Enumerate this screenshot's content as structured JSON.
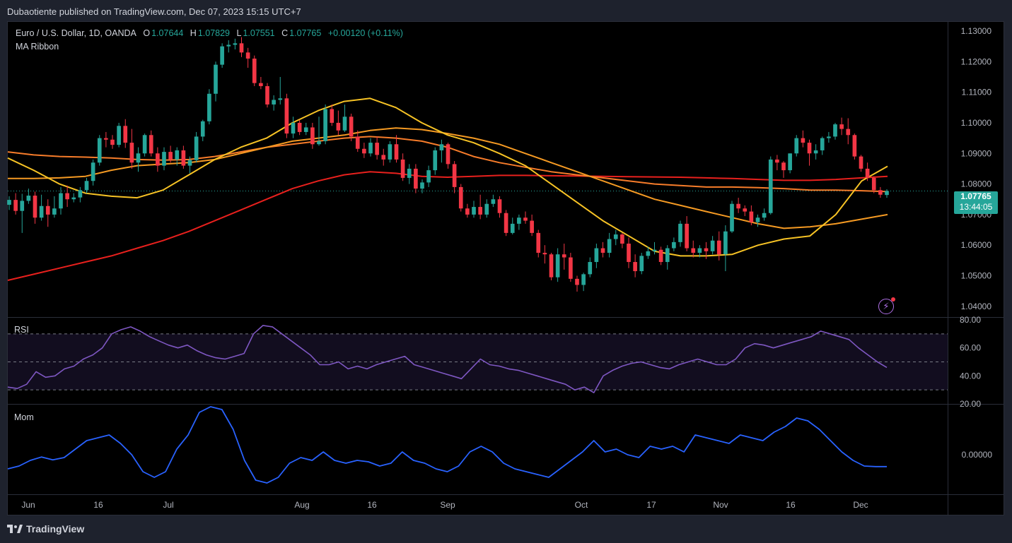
{
  "header": {
    "publisher_text": "Dubaotiente published on TradingView.com, Dec 07, 2023 15:15 UTC+7"
  },
  "legend": {
    "symbol": "Euro / U.S. Dollar, 1D, OANDA",
    "o_label": "O",
    "o_value": "1.07644",
    "h_label": "H",
    "h_value": "1.07829",
    "l_label": "L",
    "l_value": "1.07551",
    "c_label": "C",
    "c_value": "1.07765",
    "change": "+0.00120 (+0.11%)",
    "indicator": "MA Ribbon"
  },
  "price_tag": {
    "price": "1.07765",
    "countdown": "13:44:05"
  },
  "panes": {
    "rsi_label": "RSI",
    "mom_label": "Mom"
  },
  "footer": {
    "brand": "TradingView"
  },
  "colors": {
    "up": "#26a69a",
    "down": "#f23645",
    "ma_fast": "#f7c325",
    "ma_mid": "#f59a23",
    "ma_slow": "#f77c2a",
    "ma_200": "#e8201d",
    "rsi": "#7e57c2",
    "mom": "#2962ff"
  },
  "chart_data": {
    "type": "candlestick",
    "title": "Euro / U.S. Dollar, 1D, OANDA",
    "x_tick_labels": [
      "Jun",
      "16",
      "Jul",
      "Aug",
      "16",
      "Sep",
      "Oct",
      "17",
      "Nov",
      "16",
      "Dec"
    ],
    "price_axis": {
      "ticks": [
        "1.13000",
        "1.12000",
        "1.11000",
        "1.10000",
        "1.09000",
        "1.08000",
        "1.07000",
        "1.06000",
        "1.05000",
        "1.04000"
      ],
      "ylim": [
        1.0365,
        1.133
      ]
    },
    "rsi_axis": {
      "ticks": [
        "80.00",
        "60.00",
        "40.00",
        "20.00"
      ],
      "bands": [
        70,
        50,
        30
      ]
    },
    "mom_axis": {
      "ticks": [
        "0.00000"
      ]
    },
    "candles": [
      [
        1.0732,
        1.076,
        1.0715,
        1.0748
      ],
      [
        1.0748,
        1.077,
        1.07,
        1.0712
      ],
      [
        1.0712,
        1.0768,
        1.064,
        1.0745
      ],
      [
        1.0745,
        1.0785,
        1.0735,
        1.0762
      ],
      [
        1.0762,
        1.0775,
        1.067,
        1.069
      ],
      [
        1.069,
        1.0765,
        1.068,
        1.0728
      ],
      [
        1.0728,
        1.075,
        1.066,
        1.07
      ],
      [
        1.07,
        1.076,
        1.069,
        1.072
      ],
      [
        1.072,
        1.079,
        1.07,
        1.077
      ],
      [
        1.077,
        1.0795,
        1.0725,
        1.075
      ],
      [
        1.075,
        1.077,
        1.074,
        1.0756
      ],
      [
        1.0756,
        1.079,
        1.074,
        1.078
      ],
      [
        1.078,
        1.082,
        1.077,
        1.081
      ],
      [
        1.081,
        1.088,
        1.0795,
        1.087
      ],
      [
        1.087,
        1.096,
        1.086,
        1.095
      ],
      [
        1.095,
        1.097,
        1.092,
        1.0945
      ],
      [
        1.0945,
        1.096,
        1.0915,
        1.0928
      ],
      [
        1.0928,
        1.1,
        1.092,
        1.099
      ],
      [
        1.099,
        1.1012,
        1.0918,
        1.0935
      ],
      [
        1.0935,
        1.098,
        1.085,
        1.087
      ],
      [
        1.087,
        1.092,
        1.084,
        1.09
      ],
      [
        1.09,
        1.0965,
        1.089,
        1.096
      ],
      [
        1.096,
        1.0975,
        1.089,
        1.09
      ],
      [
        1.09,
        1.092,
        1.084,
        1.086
      ],
      [
        1.086,
        1.092,
        1.0845,
        1.0905
      ],
      [
        1.0905,
        1.0925,
        1.087,
        1.088
      ],
      [
        1.088,
        1.092,
        1.086,
        1.091
      ],
      [
        1.091,
        1.0925,
        1.085,
        1.086
      ],
      [
        1.086,
        1.089,
        1.0835,
        1.0878
      ],
      [
        1.0878,
        1.097,
        1.087,
        1.0955
      ],
      [
        1.0955,
        1.101,
        1.094,
        1.1005
      ],
      [
        1.1005,
        1.111,
        1.0995,
        1.1095
      ],
      [
        1.1095,
        1.12,
        1.107,
        1.119
      ],
      [
        1.119,
        1.126,
        1.118,
        1.125
      ],
      [
        1.125,
        1.127,
        1.123,
        1.1255
      ],
      [
        1.1255,
        1.1275,
        1.124,
        1.126
      ],
      [
        1.126,
        1.128,
        1.1215,
        1.123
      ],
      [
        1.123,
        1.1245,
        1.118,
        1.121
      ],
      [
        1.121,
        1.122,
        1.112,
        1.113
      ],
      [
        1.113,
        1.115,
        1.111,
        1.112
      ],
      [
        1.112,
        1.113,
        1.105,
        1.106
      ],
      [
        1.106,
        1.109,
        1.104,
        1.1075
      ],
      [
        1.1075,
        1.115,
        1.106,
        1.108
      ],
      [
        1.108,
        1.1095,
        1.095,
        1.0965
      ],
      [
        1.0965,
        1.102,
        1.095,
        1.1
      ],
      [
        1.1,
        1.101,
        1.096,
        1.097
      ],
      [
        1.097,
        1.1,
        1.096,
        1.0985
      ],
      [
        1.0985,
        1.1,
        1.0915,
        1.093
      ],
      [
        1.093,
        1.102,
        1.0925,
        1.094
      ],
      [
        1.094,
        1.106,
        1.093,
        1.1045
      ],
      [
        1.1045,
        1.106,
        1.099,
        1.1
      ],
      [
        1.1,
        1.104,
        1.096,
        1.0975
      ],
      [
        1.0975,
        1.106,
        1.097,
        1.102
      ],
      [
        1.102,
        1.103,
        1.094,
        1.0955
      ],
      [
        1.0955,
        1.0975,
        1.0905,
        1.0915
      ],
      [
        1.0915,
        1.0935,
        1.0885,
        1.09
      ],
      [
        1.09,
        1.095,
        1.089,
        1.0935
      ],
      [
        1.0935,
        1.0955,
        1.088,
        1.0895
      ],
      [
        1.0895,
        1.0915,
        1.086,
        1.088
      ],
      [
        1.088,
        1.094,
        1.087,
        1.093
      ],
      [
        1.093,
        1.096,
        1.087,
        1.088
      ],
      [
        1.088,
        1.09,
        1.081,
        1.082
      ],
      [
        1.082,
        1.0865,
        1.08,
        1.085
      ],
      [
        1.085,
        1.0865,
        1.077,
        1.0785
      ],
      [
        1.0785,
        1.0815,
        1.077,
        1.0805
      ],
      [
        1.0805,
        1.086,
        1.079,
        1.0845
      ],
      [
        1.0845,
        1.092,
        1.083,
        1.091
      ],
      [
        1.091,
        1.0945,
        1.087,
        1.093
      ],
      [
        1.093,
        1.0935,
        1.085,
        1.0865
      ],
      [
        1.0865,
        1.0875,
        1.077,
        1.079
      ],
      [
        1.079,
        1.08,
        1.071,
        1.072
      ],
      [
        1.072,
        1.0735,
        1.069,
        1.07
      ],
      [
        1.07,
        1.0745,
        1.069,
        1.0725
      ],
      [
        1.0725,
        1.0765,
        1.0685,
        1.07
      ],
      [
        1.07,
        1.075,
        1.069,
        1.0735
      ],
      [
        1.0735,
        1.0765,
        1.0725,
        1.075
      ],
      [
        1.075,
        1.076,
        1.069,
        1.0705
      ],
      [
        1.0705,
        1.0715,
        1.063,
        1.064
      ],
      [
        1.064,
        1.069,
        1.0635,
        1.067
      ],
      [
        1.067,
        1.07,
        1.065,
        1.069
      ],
      [
        1.069,
        1.071,
        1.067,
        1.068
      ],
      [
        1.068,
        1.07,
        1.063,
        1.064
      ],
      [
        1.064,
        1.065,
        1.056,
        1.0575
      ],
      [
        1.0575,
        1.06,
        1.054,
        1.057
      ],
      [
        1.057,
        1.0575,
        1.0485,
        1.0495
      ],
      [
        1.0495,
        1.059,
        1.048,
        1.057
      ],
      [
        1.057,
        1.0605,
        1.052,
        1.056
      ],
      [
        1.056,
        1.0575,
        1.048,
        1.049
      ],
      [
        1.049,
        1.05,
        1.0448,
        1.047
      ],
      [
        1.047,
        1.051,
        1.045,
        1.0505
      ],
      [
        1.0505,
        1.056,
        1.0495,
        1.0545
      ],
      [
        1.0545,
        1.0605,
        1.0525,
        1.059
      ],
      [
        1.059,
        1.061,
        1.056,
        1.0575
      ],
      [
        1.0575,
        1.064,
        1.056,
        1.062
      ],
      [
        1.062,
        1.065,
        1.06,
        1.0635
      ],
      [
        1.0635,
        1.064,
        1.059,
        1.0605
      ],
      [
        1.0605,
        1.0625,
        1.0525,
        1.0545
      ],
      [
        1.0545,
        1.057,
        1.0495,
        1.0515
      ],
      [
        1.0515,
        1.0575,
        1.0505,
        1.0565
      ],
      [
        1.0565,
        1.0595,
        1.0555,
        1.058
      ],
      [
        1.058,
        1.061,
        1.057,
        1.0585
      ],
      [
        1.0585,
        1.0595,
        1.0535,
        1.0545
      ],
      [
        1.0545,
        1.06,
        1.052,
        1.059
      ],
      [
        1.059,
        1.0625,
        1.058,
        1.061
      ],
      [
        1.061,
        1.068,
        1.0595,
        1.067
      ],
      [
        1.067,
        1.0695,
        1.058,
        1.059
      ],
      [
        1.059,
        1.0615,
        1.056,
        1.0575
      ],
      [
        1.0575,
        1.06,
        1.056,
        1.059
      ],
      [
        1.059,
        1.061,
        1.0555,
        1.058
      ],
      [
        1.058,
        1.063,
        1.057,
        1.0615
      ],
      [
        1.0615,
        1.0645,
        1.055,
        1.057
      ],
      [
        1.057,
        1.0665,
        1.0515,
        1.0645
      ],
      [
        1.0645,
        1.0745,
        1.064,
        1.0735
      ],
      [
        1.0735,
        1.0755,
        1.0705,
        1.072
      ],
      [
        1.072,
        1.073,
        1.0695,
        1.071
      ],
      [
        1.071,
        1.073,
        1.0665,
        1.0675
      ],
      [
        1.0675,
        1.07,
        1.066,
        1.069
      ],
      [
        1.069,
        1.072,
        1.068,
        1.0705
      ],
      [
        1.0705,
        1.089,
        1.07,
        1.088
      ],
      [
        1.088,
        1.0895,
        1.0845,
        1.087
      ],
      [
        1.087,
        1.0875,
        1.082,
        1.0845
      ],
      [
        1.0845,
        1.09,
        1.0835,
        1.09
      ],
      [
        1.09,
        1.096,
        1.089,
        1.095
      ],
      [
        1.095,
        1.0975,
        1.092,
        1.0935
      ],
      [
        1.0935,
        1.0945,
        1.086,
        1.09
      ],
      [
        1.09,
        1.093,
        1.088,
        1.091
      ],
      [
        1.091,
        1.0955,
        1.0895,
        1.095
      ],
      [
        1.095,
        1.097,
        1.0935,
        1.0955
      ],
      [
        1.0955,
        1.1,
        1.0945,
        1.0995
      ],
      [
        1.0995,
        1.1017,
        1.096,
        1.098
      ],
      [
        1.098,
        1.1015,
        1.093,
        1.096
      ],
      [
        1.096,
        1.0965,
        1.088,
        1.089
      ],
      [
        1.089,
        1.0895,
        1.084,
        1.085
      ],
      [
        1.085,
        1.087,
        1.081,
        1.082
      ],
      [
        1.082,
        1.0825,
        1.077,
        1.078
      ],
      [
        1.078,
        1.079,
        1.0755,
        1.0765
      ],
      [
        1.0764,
        1.0783,
        1.0755,
        1.0777
      ]
    ],
    "ma_fast": [
      1.0885,
      1.0845,
      1.08,
      1.077,
      1.076,
      1.0755,
      1.078,
      1.083,
      1.088,
      1.092,
      1.095,
      1.1,
      1.104,
      1.107,
      1.108,
      1.105,
      1.1,
      1.096,
      1.0935,
      1.09,
      1.086,
      1.08,
      1.074,
      1.068,
      1.063,
      1.058,
      1.0565,
      1.0565,
      1.057,
      1.06,
      1.062,
      1.063,
      1.07,
      1.081,
      1.0858
    ],
    "ma_mid": [
      1.0818,
      1.0818,
      1.082,
      1.0825,
      1.0845,
      1.086,
      1.0865,
      1.087,
      1.088,
      1.09,
      1.092,
      1.094,
      1.095,
      1.096,
      1.0975,
      1.0983,
      1.0978,
      1.0965,
      1.095,
      1.093,
      1.09,
      1.087,
      1.084,
      1.081,
      1.078,
      1.075,
      1.073,
      1.071,
      1.069,
      1.067,
      1.0655,
      1.066,
      1.067,
      1.0685,
      1.07
    ],
    "ma_slow": [
      1.0905,
      1.0895,
      1.089,
      1.0888,
      1.0885,
      1.088,
      1.0878,
      1.088,
      1.089,
      1.0905,
      1.092,
      1.093,
      1.094,
      1.095,
      1.0955,
      1.095,
      1.094,
      1.092,
      1.089,
      1.087,
      1.0855,
      1.084,
      1.083,
      1.082,
      1.081,
      1.08,
      1.0795,
      1.079,
      1.079,
      1.0788,
      1.0785,
      1.078,
      1.078,
      1.0778,
      1.0775
    ],
    "ma_200": [
      1.0485,
      1.0505,
      1.0525,
      1.0545,
      1.0565,
      1.059,
      1.0615,
      1.0645,
      1.068,
      1.0715,
      1.075,
      1.0785,
      1.081,
      1.083,
      1.084,
      1.0835,
      1.0825,
      1.0822,
      1.0825,
      1.0828,
      1.0828,
      1.0827,
      1.0826,
      1.0825,
      1.0824,
      1.0823,
      1.0822,
      1.082,
      1.0818,
      1.0815,
      1.0812,
      1.0812,
      1.0815,
      1.082,
      1.0825
    ],
    "rsi": [
      32,
      31,
      34,
      43,
      39,
      40,
      45,
      47,
      52,
      55,
      60,
      70,
      73,
      75,
      72,
      68,
      65,
      62,
      60,
      62,
      58,
      55,
      53,
      52,
      54,
      56,
      70,
      76,
      75,
      70,
      65,
      60,
      55,
      48,
      48,
      50,
      45,
      47,
      45,
      48,
      50,
      52,
      54,
      48,
      46,
      44,
      42,
      40,
      38,
      45,
      52,
      48,
      47,
      45,
      44,
      42,
      40,
      38,
      36,
      34,
      30,
      32,
      28,
      40,
      44,
      47,
      49,
      50,
      48,
      46,
      45,
      48,
      50,
      52,
      50,
      48,
      48,
      52,
      60,
      63,
      62,
      60,
      62,
      64,
      66,
      68,
      72,
      70,
      68,
      66,
      60,
      55,
      50,
      46
    ],
    "mom": [
      -0.005,
      -0.004,
      -0.002,
      -0.0008,
      -0.0018,
      -0.001,
      0.002,
      0.005,
      0.006,
      0.007,
      0.004,
      0.0,
      -0.006,
      -0.008,
      -0.006,
      0.002,
      0.007,
      0.015,
      0.017,
      0.016,
      0.009,
      -0.002,
      -0.009,
      -0.01,
      -0.008,
      -0.003,
      -0.001,
      -0.002,
      0.001,
      -0.002,
      -0.003,
      -0.002,
      -0.0025,
      -0.004,
      -0.003,
      0.001,
      -0.002,
      -0.003,
      -0.005,
      -0.006,
      -0.004,
      0.001,
      0.003,
      0.001,
      -0.003,
      -0.005,
      -0.006,
      -0.007,
      -0.008,
      -0.005,
      -0.002,
      0.001,
      0.005,
      0.001,
      0.002,
      0.0,
      -0.001,
      0.003,
      0.002,
      0.003,
      0.001,
      0.007,
      0.006,
      0.005,
      0.004,
      0.007,
      0.006,
      0.005,
      0.008,
      0.01,
      0.013,
      0.012,
      0.009,
      0.005,
      0.001,
      -0.002,
      -0.004,
      -0.0042,
      -0.0042
    ]
  }
}
